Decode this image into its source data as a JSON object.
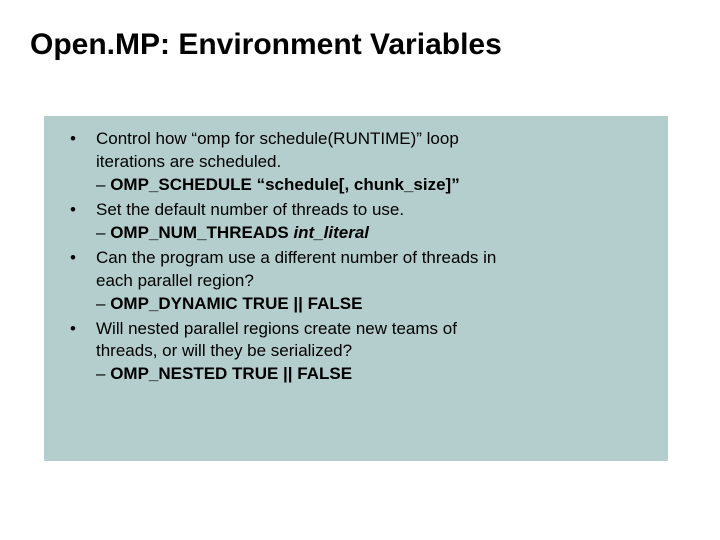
{
  "title": "Open.MP: Environment Variables",
  "background_color": "#ffffff",
  "box_color": "#b4cdcd",
  "text_color": "#000000",
  "title_fontsize": 30,
  "body_fontsize": 17,
  "bullets": [
    {
      "text_line1": "Control how “omp for schedule(RUNTIME)” loop",
      "text_line2": "iterations are scheduled.",
      "sub_dash": "– ",
      "sub_bold": "OMP_SCHEDULE “schedule[, chunk_size]”",
      "sub_italic": ""
    },
    {
      "text_line1": "Set the default number of threads to use.",
      "text_line2": "",
      "sub_dash": "– ",
      "sub_bold": "OMP_NUM_THREADS ",
      "sub_italic": "int_literal"
    },
    {
      "text_line1": "Can the program use a different number of threads in",
      "text_line2": "each parallel region?",
      "sub_dash": "– ",
      "sub_bold": "OMP_DYNAMIC TRUE || FALSE",
      "sub_italic": ""
    },
    {
      "text_line1": "Will nested parallel regions create new teams of",
      "text_line2": "threads, or will they be serialized?",
      "sub_dash": "– ",
      "sub_bold": "OMP_NESTED TRUE || FALSE",
      "sub_italic": ""
    }
  ]
}
